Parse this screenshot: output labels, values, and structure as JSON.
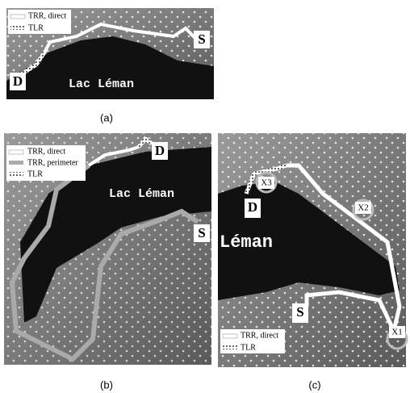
{
  "panels": [
    {
      "legend": [
        "TRR, direct",
        "TLR"
      ],
      "labels": {
        "source": "S",
        "destination": "D",
        "lake": "Lac Léman"
      },
      "caption": "(a)"
    },
    {
      "legend": [
        "TRR, direct",
        "TRR, perimeter",
        "TLR"
      ],
      "labels": {
        "source": "S",
        "destination": "D",
        "lake": "Lac Léman"
      },
      "caption": "(b)"
    },
    {
      "legend": [
        "TRR, direct",
        "TLR"
      ],
      "labels": {
        "source": "S",
        "destination": "D",
        "lake": "Léman",
        "relays": [
          "X1",
          "X2",
          "X3"
        ]
      },
      "caption": "(c)"
    }
  ]
}
